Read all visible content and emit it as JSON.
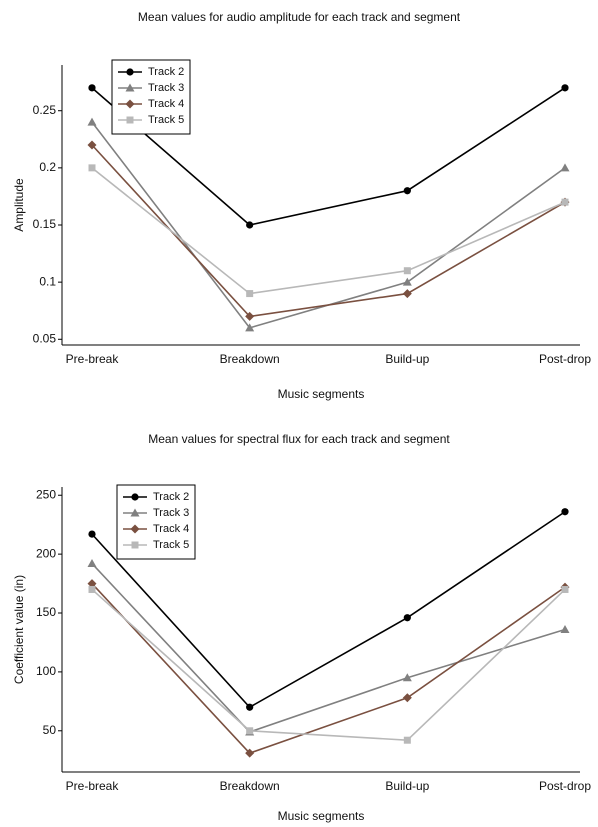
{
  "chart_data": [
    {
      "type": "line",
      "title": "Mean values for audio amplitude for each  track and segment",
      "x_label": "Music segments",
      "y_label": "Amplitude",
      "categories": [
        "Pre-break",
        "Breakdown",
        "Build-up",
        "Post-drop"
      ],
      "series": [
        {
          "name": "Track 2",
          "color": "#000000",
          "marker": "circle",
          "values": [
            0.27,
            0.15,
            0.18,
            0.27
          ]
        },
        {
          "name": "Track 3",
          "color": "#808080",
          "marker": "triangle",
          "values": [
            0.24,
            0.06,
            0.1,
            0.2
          ]
        },
        {
          "name": "Track 4",
          "color": "#7a5040",
          "marker": "diamond",
          "values": [
            0.22,
            0.07,
            0.09,
            0.17
          ]
        },
        {
          "name": "Track 5",
          "color": "#b8b8b8",
          "marker": "square",
          "values": [
            0.2,
            0.09,
            0.11,
            0.17
          ]
        }
      ],
      "ylim": [
        0.045,
        0.29
      ],
      "yticks": [
        0.05,
        0.1,
        0.15,
        0.2,
        0.25
      ],
      "grid": false,
      "legend": "upper left"
    },
    {
      "type": "line",
      "title": "Mean values for spectral flux for each  track and segment",
      "x_label": "Music segments",
      "y_label": "Coefficient value (in)",
      "categories": [
        "Pre-break",
        "Breakdown",
        "Build-up",
        "Post-drop"
      ],
      "series": [
        {
          "name": "Track 2",
          "color": "#000000",
          "marker": "circle",
          "values": [
            217,
            70,
            146,
            236
          ]
        },
        {
          "name": "Track 3",
          "color": "#808080",
          "marker": "triangle",
          "values": [
            192,
            49,
            95,
            136
          ]
        },
        {
          "name": "Track 4",
          "color": "#7a5040",
          "marker": "diamond",
          "values": [
            175,
            31,
            78,
            172
          ]
        },
        {
          "name": "Track 5",
          "color": "#b8b8b8",
          "marker": "square",
          "values": [
            170,
            50,
            42,
            170
          ]
        }
      ],
      "ylim": [
        15,
        257
      ],
      "yticks": [
        50,
        100,
        150,
        200,
        250
      ],
      "grid": false,
      "legend": "upper left"
    }
  ]
}
